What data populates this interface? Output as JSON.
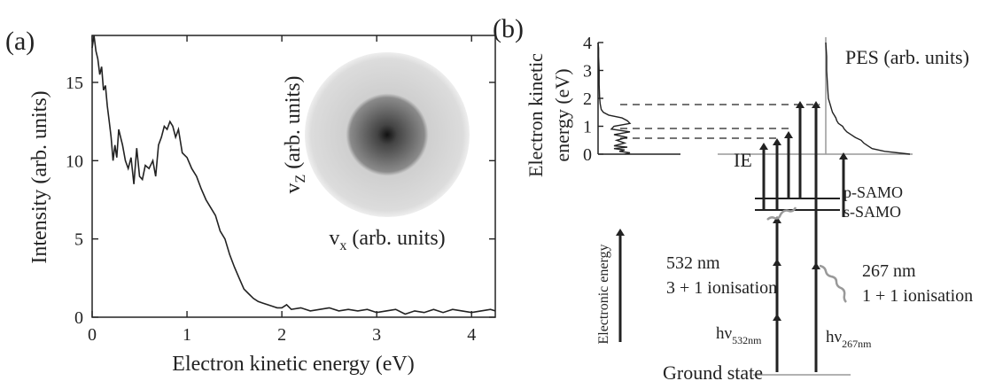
{
  "panel_a": {
    "label": "(a)",
    "xlabel": "Electron kinetic energy (eV)",
    "ylabel": "Intensity (arb. units)",
    "inset": {
      "xlabel_main": "v",
      "xlabel_sub": "x",
      "xlabel_rest": " (arb. units)",
      "ylabel_main": "v",
      "ylabel_sub": "Z",
      "ylabel_rest": " (arb. units)"
    }
  },
  "panel_b": {
    "label": "(b)",
    "pes_label": "PES (arb. units)",
    "eke_axis_label_line1": "Electron kinetic",
    "eke_axis_label_line2": "energy (eV)",
    "electronic_energy_label": "Electronic energy",
    "ie_label": "IE",
    "p_samo": "p-SAMO",
    "s_samo": "s-SAMO",
    "green_wavelength": "532 nm",
    "green_process": "3 + 1 ionisation",
    "uv_wavelength": "267 nm",
    "uv_process": "1 + 1 ionisation",
    "hv_main": "hν",
    "hv532_sub": "532nm",
    "hv267_sub": "267nm",
    "ground_state": "Ground state",
    "eke_ticks": [
      "0",
      "1",
      "2",
      "3",
      "4"
    ]
  },
  "colors": {
    "line": "#222222",
    "grey": "#999999"
  },
  "chart_data": [
    {
      "type": "line",
      "title": "",
      "xlabel": "Electron kinetic energy (eV)",
      "ylabel": "Intensity (arb. units)",
      "xlim": [
        0,
        4.25
      ],
      "ylim": [
        0,
        18
      ],
      "x_ticks": [
        0,
        1,
        2,
        3,
        4
      ],
      "y_ticks": [
        0,
        5,
        10,
        15
      ],
      "grid": false,
      "x": [
        0,
        0.02,
        0.04,
        0.06,
        0.08,
        0.1,
        0.12,
        0.14,
        0.16,
        0.18,
        0.2,
        0.22,
        0.24,
        0.26,
        0.28,
        0.3,
        0.32,
        0.35,
        0.38,
        0.41,
        0.44,
        0.47,
        0.5,
        0.53,
        0.56,
        0.6,
        0.64,
        0.67,
        0.7,
        0.73,
        0.76,
        0.79,
        0.82,
        0.85,
        0.88,
        0.91,
        0.95,
        1.0,
        1.05,
        1.1,
        1.15,
        1.2,
        1.25,
        1.3,
        1.35,
        1.4,
        1.45,
        1.5,
        1.55,
        1.6,
        1.65,
        1.7,
        1.75,
        1.8,
        1.85,
        1.9,
        1.95,
        2.0,
        2.05,
        2.1,
        2.2,
        2.3,
        2.4,
        2.5,
        2.6,
        2.7,
        2.8,
        2.9,
        3.0,
        3.1,
        3.2,
        3.3,
        3.4,
        3.5,
        3.6,
        3.7,
        3.8,
        3.9,
        4.0,
        4.1,
        4.2,
        4.25
      ],
      "y": [
        17.2,
        18.0,
        17.0,
        16.5,
        15.5,
        16.0,
        14.5,
        14.8,
        13.5,
        12.5,
        11.5,
        10.0,
        11.0,
        10.2,
        12.0,
        11.5,
        11.0,
        10.0,
        9.5,
        10.2,
        8.5,
        10.8,
        9.0,
        8.8,
        9.7,
        9.5,
        10.0,
        9.0,
        11.0,
        11.5,
        12.2,
        12.0,
        12.5,
        12.2,
        11.5,
        12.0,
        10.5,
        10.2,
        9.5,
        9.0,
        8.2,
        7.5,
        7.0,
        6.5,
        5.5,
        5.0,
        4.0,
        3.2,
        2.5,
        1.8,
        1.5,
        1.2,
        1.0,
        0.9,
        0.8,
        0.7,
        0.6,
        0.6,
        0.8,
        0.5,
        0.6,
        0.4,
        0.5,
        0.6,
        0.4,
        0.5,
        0.4,
        0.5,
        0.3,
        0.4,
        0.5,
        0.2,
        0.4,
        0.3,
        0.5,
        0.3,
        0.5,
        0.4,
        0.3,
        0.4,
        0.5,
        0.4
      ]
    },
    {
      "type": "line",
      "title": "",
      "xlabel": "",
      "ylabel": "Electron kinetic energy (eV)",
      "ylim": [
        0,
        4
      ],
      "series": [
        {
          "eke": [
            0,
            0.05,
            0.1,
            0.15,
            0.2,
            0.25,
            0.3,
            0.4,
            0.5,
            0.6,
            0.7,
            0.8,
            0.9,
            1.0,
            1.1,
            1.2,
            1.3,
            1.4,
            1.5,
            1.6,
            1.8,
            2.0,
            2.5,
            3.0,
            3.5,
            3.8,
            4.0
          ],
          "intensity": [
            0.5,
            0.6,
            0.4,
            0.5,
            0.3,
            0.55,
            0.3,
            0.5,
            0.35,
            0.55,
            0.3,
            0.6,
            0.25,
            0.3,
            0.6,
            0.55,
            0.45,
            0.2,
            0.1,
            0.06,
            0.04,
            0.03,
            0.02,
            0.02,
            0.01,
            0.01,
            0.0
          ]
        },
        {
          "eke": [
            0,
            0.1,
            0.2,
            0.3,
            0.4,
            0.5,
            0.6,
            0.7,
            0.8,
            0.9,
            1.0,
            1.1,
            1.2,
            1.3,
            1.4,
            1.5,
            1.6,
            1.7,
            1.8,
            2.0,
            2.5,
            3.0,
            3.5,
            4.0
          ],
          "intensity": [
            1.0,
            0.7,
            0.55,
            0.5,
            0.45,
            0.42,
            0.35,
            0.3,
            0.25,
            0.22,
            0.2,
            0.15,
            0.13,
            0.12,
            0.1,
            0.08,
            0.07,
            0.06,
            0.05,
            0.03,
            0.02,
            0.01,
            0.01,
            0.0
          ]
        }
      ]
    }
  ]
}
